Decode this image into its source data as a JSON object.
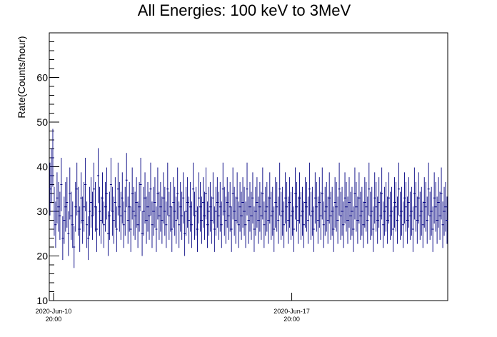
{
  "chart_data": {
    "type": "scatter",
    "title": "All Energies:  100 keV to 3MeV",
    "xlabel": "",
    "ylabel": "Rate(Counts/hour)",
    "ylim": [
      10,
      70
    ],
    "xlim": [
      "2020-Jun-10 17:00",
      "2020-Jun-22 10:00"
    ],
    "y_ticks": [
      10,
      20,
      30,
      40,
      50,
      60
    ],
    "x_ticks": [
      {
        "value": "2020-Jun-10 20:00",
        "line1": "2020-Jun-10",
        "line2": "20:00"
      },
      {
        "value": "2020-Jun-17 20:00",
        "line1": "2020-Jun-17",
        "line2": "20:00"
      }
    ],
    "marker_color": "#000080",
    "error_bars": true,
    "grid": false,
    "series": [
      {
        "x_start": "2020-Jun-10 17:30",
        "x_step_hours": 1,
        "values": [
          35,
          38,
          42,
          30,
          27,
          33,
          31,
          29,
          36,
          24,
          28,
          31,
          32,
          25,
          34,
          29,
          27,
          22,
          31,
          35,
          30,
          26,
          33,
          28,
          31,
          36,
          27,
          24,
          30,
          32,
          29,
          35,
          31,
          26,
          38,
          30,
          28,
          33,
          27,
          31,
          34,
          25,
          29,
          36,
          30,
          28,
          32,
          26,
          35,
          31,
          29,
          33,
          27,
          30,
          37,
          28,
          31,
          26,
          34,
          30,
          29,
          32,
          27,
          31,
          36,
          25,
          30,
          33,
          28,
          31,
          29,
          35,
          27,
          30,
          32,
          26,
          34,
          29,
          31,
          28,
          33,
          30,
          27,
          35,
          29,
          31,
          26,
          32,
          30,
          28,
          34,
          27,
          31,
          29,
          33,
          25,
          30,
          32,
          28,
          31,
          27,
          35,
          29,
          30,
          26,
          33,
          31,
          28,
          32,
          29,
          34,
          27,
          30,
          31,
          28,
          33,
          26,
          30,
          32,
          29,
          31,
          27,
          35,
          30,
          28,
          32,
          29,
          31,
          26,
          34,
          30,
          28,
          33,
          27,
          31,
          29,
          32,
          30,
          27,
          35,
          28,
          31,
          29,
          33,
          26,
          30,
          32,
          28,
          31,
          29,
          34,
          27,
          30,
          31,
          28,
          33,
          29,
          30,
          26,
          32,
          31,
          28,
          35,
          29,
          30,
          27,
          33,
          31,
          28,
          32,
          29,
          30,
          26,
          34,
          31,
          28,
          33,
          29,
          30,
          27,
          32,
          31,
          28,
          35,
          29,
          30,
          26,
          33,
          31,
          28,
          32,
          29,
          34,
          27,
          30,
          31,
          28,
          33,
          29,
          30,
          26,
          32,
          31,
          28,
          35,
          29,
          30,
          27,
          33,
          31,
          28,
          32,
          29,
          30,
          26,
          34,
          31,
          28,
          33,
          29,
          30,
          27,
          32,
          31,
          28,
          35,
          29,
          30,
          26,
          33,
          31,
          28,
          32,
          29,
          34,
          27,
          30,
          31,
          28,
          33,
          29,
          30,
          26,
          32,
          31,
          28,
          35,
          29,
          30,
          27,
          33,
          31,
          28,
          32,
          29,
          30,
          26,
          34,
          31,
          28,
          33,
          29,
          30,
          27,
          32,
          31,
          28,
          35,
          29,
          30,
          26,
          33,
          31,
          28,
          32,
          29,
          34,
          27,
          30,
          31,
          28
        ]
      }
    ]
  }
}
